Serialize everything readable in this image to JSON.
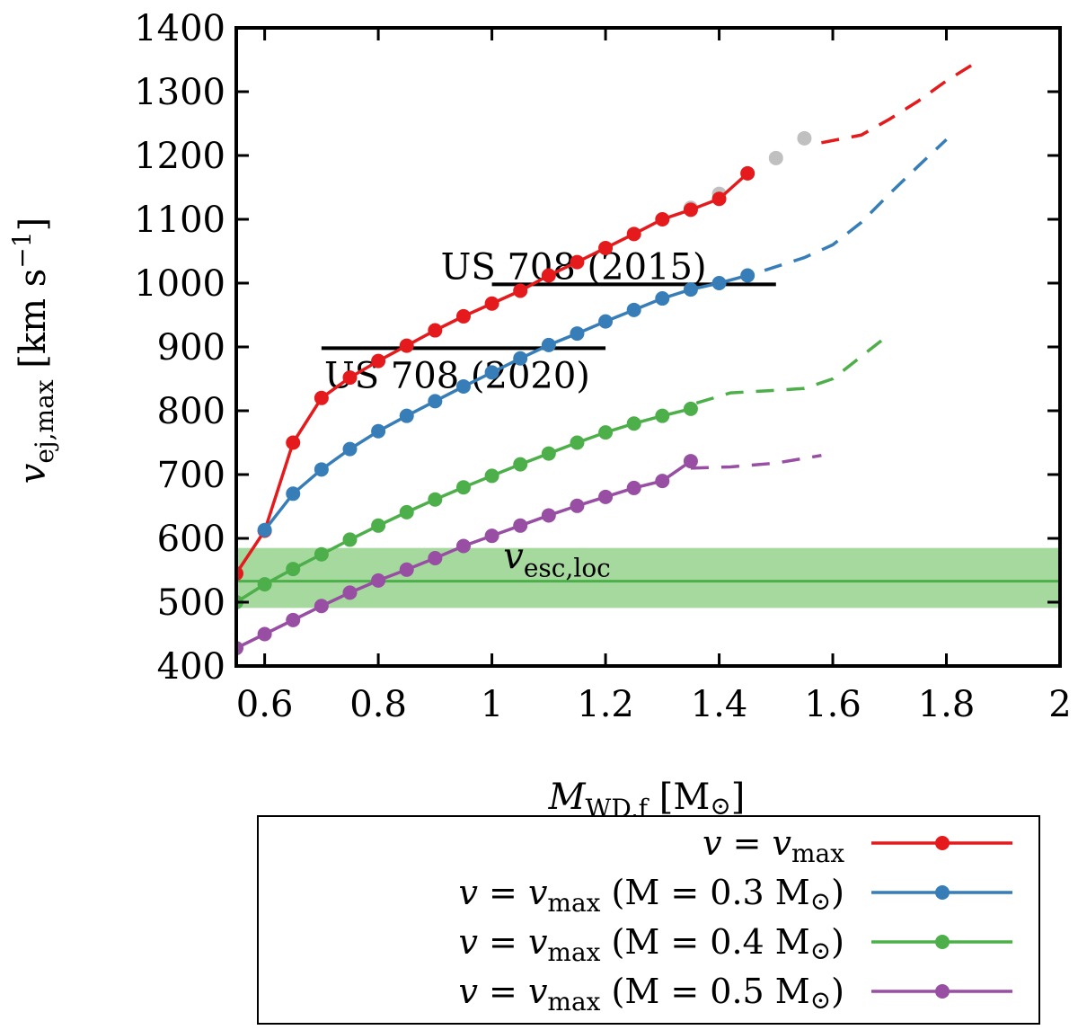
{
  "chart_data": {
    "type": "line",
    "title": "",
    "xlabel": {
      "main": "M",
      "sub": "WD,f",
      "unit": "[M",
      "unit_symbol": "⊙",
      "unit_close": "]"
    },
    "ylabel": {
      "main": "v",
      "sub": "ej,max",
      "unit": "[km s",
      "unit_exp": "−1",
      "unit_close": "]"
    },
    "xlim": [
      0.55,
      2.0
    ],
    "ylim": [
      400,
      1400
    ],
    "xticks": [
      0.6,
      0.8,
      1,
      1.2,
      1.4,
      1.6,
      1.8,
      2
    ],
    "xtick_labels": [
      "0.6",
      "0.8",
      "1",
      "1.2",
      "1.4",
      "1.6",
      "1.8",
      "2"
    ],
    "yticks": [
      400,
      500,
      600,
      700,
      800,
      900,
      1000,
      1100,
      1200,
      1300,
      1400
    ],
    "ytick_labels": [
      "400",
      "500",
      "600",
      "700",
      "800",
      "900",
      "1000",
      "1100",
      "1200",
      "1300",
      "1400"
    ],
    "grid": false,
    "legend_position": "below",
    "escape_band": {
      "label_main": "v",
      "label_sub": "esc,loc",
      "center": 533,
      "low": 491,
      "high": 585,
      "line_color": "#4daf4a",
      "fill_color": "#a6d99e"
    },
    "reference_lines": [
      {
        "label": "US 708 (2015)",
        "y": 998,
        "x_range": [
          1.0,
          1.5
        ],
        "label_position": "above"
      },
      {
        "label": "US 708 (2020)",
        "y": 898,
        "x_range": [
          0.7,
          1.2
        ],
        "label_position": "below"
      }
    ],
    "gray_points": {
      "color": "#c0c0c0",
      "x": [
        1.35,
        1.4,
        1.5,
        1.55
      ],
      "y": [
        1118,
        1140,
        1196,
        1227
      ]
    },
    "series": [
      {
        "name_parts": {
          "v": "v",
          "eq": " = ",
          "vmax": "v",
          "vmax_sub": "max",
          "suffix": ""
        },
        "color": "#e41a1c",
        "x": [
          0.55,
          0.6,
          0.65,
          0.7,
          0.75,
          0.8,
          0.85,
          0.9,
          0.95,
          1.0,
          1.05,
          1.1,
          1.15,
          1.2,
          1.25,
          1.3,
          1.35,
          1.4,
          1.45
        ],
        "y": [
          545,
          612,
          750,
          820,
          852,
          878,
          902,
          926,
          948,
          968,
          988,
          1012,
          1033,
          1055,
          1077,
          1100,
          1115,
          1132,
          1172
        ],
        "dashed_x": [
          1.58,
          1.65,
          1.7,
          1.75,
          1.8,
          1.86
        ],
        "dashed_y": [
          1220,
          1232,
          1257,
          1285,
          1317,
          1350
        ]
      },
      {
        "name_parts": {
          "v": "v",
          "eq": " = ",
          "vmax": "v",
          "vmax_sub": "max",
          "suffix": " (M = 0.3 M",
          "suffix_symbol": "⊙",
          "suffix_close": ")"
        },
        "color": "#377eb8",
        "x": [
          0.6,
          0.65,
          0.7,
          0.75,
          0.8,
          0.85,
          0.9,
          0.95,
          1.0,
          1.05,
          1.1,
          1.15,
          1.2,
          1.25,
          1.3,
          1.35,
          1.4,
          1.45
        ],
        "y": [
          613,
          670,
          708,
          740,
          768,
          792,
          815,
          838,
          860,
          882,
          903,
          921,
          940,
          958,
          976,
          990,
          1000,
          1012
        ],
        "dashed_x": [
          1.48,
          1.55,
          1.6,
          1.65,
          1.7,
          1.75,
          1.8
        ],
        "dashed_y": [
          1020,
          1040,
          1060,
          1095,
          1140,
          1183,
          1225
        ]
      },
      {
        "name_parts": {
          "v": "v",
          "eq": " = ",
          "vmax": "v",
          "vmax_sub": "max",
          "suffix": " (M = 0.4 M",
          "suffix_symbol": "⊙",
          "suffix_close": ")"
        },
        "color": "#4daf4a",
        "x": [
          0.55,
          0.6,
          0.65,
          0.7,
          0.75,
          0.8,
          0.85,
          0.9,
          0.95,
          1.0,
          1.05,
          1.1,
          1.15,
          1.2,
          1.25,
          1.3,
          1.35
        ],
        "y": [
          500,
          528,
          552,
          575,
          598,
          620,
          641,
          661,
          680,
          698,
          716,
          733,
          750,
          766,
          780,
          792,
          803
        ],
        "dashed_x": [
          1.36,
          1.42,
          1.5,
          1.55,
          1.6,
          1.65,
          1.7
        ],
        "dashed_y": [
          812,
          828,
          832,
          835,
          850,
          885,
          920
        ]
      },
      {
        "name_parts": {
          "v": "v",
          "eq": " = ",
          "vmax": "v",
          "vmax_sub": "max",
          "suffix": " (M = 0.5 M",
          "suffix_symbol": "⊙",
          "suffix_close": ")"
        },
        "color": "#984ea3",
        "x": [
          0.55,
          0.6,
          0.65,
          0.7,
          0.75,
          0.8,
          0.85,
          0.9,
          0.95,
          1.0,
          1.05,
          1.1,
          1.15,
          1.2,
          1.25,
          1.3,
          1.35
        ],
        "y": [
          428,
          450,
          472,
          494,
          515,
          534,
          551,
          569,
          588,
          604,
          620,
          636,
          651,
          665,
          679,
          690,
          721
        ],
        "dashed_x": [
          1.35,
          1.42,
          1.5,
          1.58
        ],
        "dashed_y": [
          710,
          712,
          718,
          730
        ]
      }
    ]
  }
}
